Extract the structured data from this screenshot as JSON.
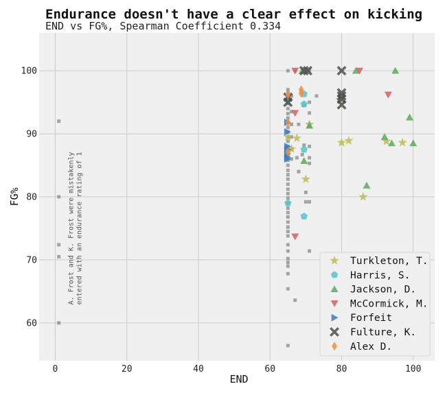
{
  "chart_data": {
    "type": "scatter",
    "title": "Endurance doesn't have a clear effect on kicking",
    "subtitle": "END vs FG%, Spearman Coefficient 0.334",
    "xlabel": "END",
    "ylabel": "FG%",
    "xlim": [
      -4.5,
      106
    ],
    "ylim": [
      54,
      106
    ],
    "xticks": [
      0,
      20,
      40,
      60,
      80,
      100
    ],
    "yticks": [
      60,
      70,
      80,
      90,
      100
    ],
    "grid": true,
    "legend_position": "bottom-right",
    "annotation": {
      "lines": [
        "A. Frost and K. Frost were mistakenly",
        "entered with an endurance rating of 1"
      ],
      "x": 5,
      "y": 75
    },
    "background_points": {
      "color": "#8a8a8a",
      "points": [
        [
          1,
          92
        ],
        [
          1,
          80
        ],
        [
          1,
          72.4
        ],
        [
          1,
          70.5
        ],
        [
          1,
          60
        ],
        [
          65,
          100
        ],
        [
          65,
          97
        ],
        [
          65,
          96.5
        ],
        [
          65,
          95.5
        ],
        [
          65,
          94.8
        ],
        [
          65,
          94
        ],
        [
          65,
          93.2
        ],
        [
          65,
          92.5
        ],
        [
          65,
          91.8
        ],
        [
          65,
          91
        ],
        [
          65,
          90.3
        ],
        [
          65,
          89.5
        ],
        [
          65,
          88.8
        ],
        [
          65,
          88
        ],
        [
          65,
          87.2
        ],
        [
          65,
          86.5
        ],
        [
          65,
          85.8
        ],
        [
          65,
          85
        ],
        [
          65,
          84.2
        ],
        [
          65,
          83.5
        ],
        [
          65,
          82.8
        ],
        [
          65,
          82
        ],
        [
          65,
          81.2
        ],
        [
          65,
          80.5
        ],
        [
          65,
          79.8
        ],
        [
          65,
          79
        ],
        [
          65,
          78.2
        ],
        [
          65,
          77.5
        ],
        [
          65,
          76.8
        ],
        [
          65,
          76
        ],
        [
          65,
          75.2
        ],
        [
          65,
          74.5
        ],
        [
          65,
          73.8
        ],
        [
          65,
          72.4
        ],
        [
          65,
          71.4
        ],
        [
          65,
          70.2
        ],
        [
          65,
          69.6
        ],
        [
          65,
          69
        ],
        [
          65,
          67.8
        ],
        [
          65,
          65.4
        ],
        [
          65,
          56.4
        ],
        [
          66,
          96
        ],
        [
          66,
          93.5
        ],
        [
          66,
          91.5
        ],
        [
          66,
          89.5
        ],
        [
          66,
          87.5
        ],
        [
          66,
          86
        ],
        [
          67,
          100
        ],
        [
          67,
          63.6
        ],
        [
          67.5,
          86.2
        ],
        [
          68,
          91.5
        ],
        [
          68,
          84
        ],
        [
          69,
          86.7
        ],
        [
          69.5,
          94.5
        ],
        [
          69.5,
          88.2
        ],
        [
          70,
          80.7
        ],
        [
          70,
          79.2
        ],
        [
          71,
          100
        ],
        [
          71,
          95
        ],
        [
          71,
          93.3
        ],
        [
          71,
          91.2
        ],
        [
          71,
          88
        ],
        [
          71,
          86.2
        ],
        [
          71,
          85.3
        ],
        [
          71,
          79.2
        ],
        [
          71,
          71.4
        ],
        [
          73,
          96
        ]
      ]
    },
    "series": [
      {
        "name": "Turkleton, T.",
        "marker": "star",
        "color": "#bcbd50",
        "points": [
          [
            65,
            89.5
          ],
          [
            66,
            87.6
          ],
          [
            67.5,
            89.3
          ],
          [
            70,
            82.8
          ],
          [
            71,
            91.5
          ],
          [
            79.5,
            95.4
          ],
          [
            80,
            88.6
          ],
          [
            82,
            88.9
          ],
          [
            86,
            80
          ],
          [
            92.5,
            88.8
          ],
          [
            97,
            88.6
          ]
        ]
      },
      {
        "name": "Harris, S.",
        "marker": "pentagon",
        "color": "#55c4cc",
        "points": [
          [
            65,
            79
          ],
          [
            65,
            95.4
          ],
          [
            69.5,
            96.3
          ],
          [
            69.5,
            94.7
          ],
          [
            69.5,
            87.5
          ],
          [
            69.5,
            76.9
          ]
        ]
      },
      {
        "name": "Jackson, D.",
        "marker": "triangle-up",
        "color": "#5aaa5a",
        "points": [
          [
            69,
            100
          ],
          [
            69.5,
            85.7
          ],
          [
            71,
            91.3
          ],
          [
            84,
            100
          ],
          [
            87,
            81.8
          ],
          [
            92,
            89.5
          ],
          [
            94,
            88.5
          ],
          [
            95,
            100
          ],
          [
            99,
            92.6
          ],
          [
            100,
            88.5
          ]
        ]
      },
      {
        "name": "McCormick, M.",
        "marker": "triangle-down",
        "color": "#d65f5f",
        "points": [
          [
            67,
            100
          ],
          [
            67,
            93.3
          ],
          [
            67,
            73.7
          ],
          [
            85,
            100
          ],
          [
            93,
            96.2
          ]
        ]
      },
      {
        "name": "Forfeit",
        "marker": "triangle-right",
        "color": "#3b7bbf",
        "points": [
          [
            64.8,
            91.8
          ],
          [
            64.8,
            90.3
          ],
          [
            64.8,
            88
          ],
          [
            64.8,
            87.5
          ],
          [
            64.8,
            86.8
          ],
          [
            64.8,
            86.3
          ],
          [
            64.8,
            86
          ]
        ]
      },
      {
        "name": "Fulture, K.",
        "marker": "x",
        "color": "#4d4d4d",
        "points": [
          [
            65,
            95.8
          ],
          [
            65,
            95
          ],
          [
            69.5,
            100
          ],
          [
            70.5,
            100
          ],
          [
            80,
            100
          ],
          [
            80,
            96.5
          ],
          [
            80,
            96
          ],
          [
            80,
            95.5
          ],
          [
            80,
            94.6
          ]
        ]
      },
      {
        "name": "Alex D.",
        "marker": "diamond",
        "color": "#ee8e3e",
        "points": [
          [
            65,
            96.2
          ],
          [
            65,
            91.8
          ],
          [
            65,
            87.1
          ],
          [
            68.7,
            97
          ],
          [
            68.7,
            96.4
          ]
        ]
      }
    ]
  }
}
